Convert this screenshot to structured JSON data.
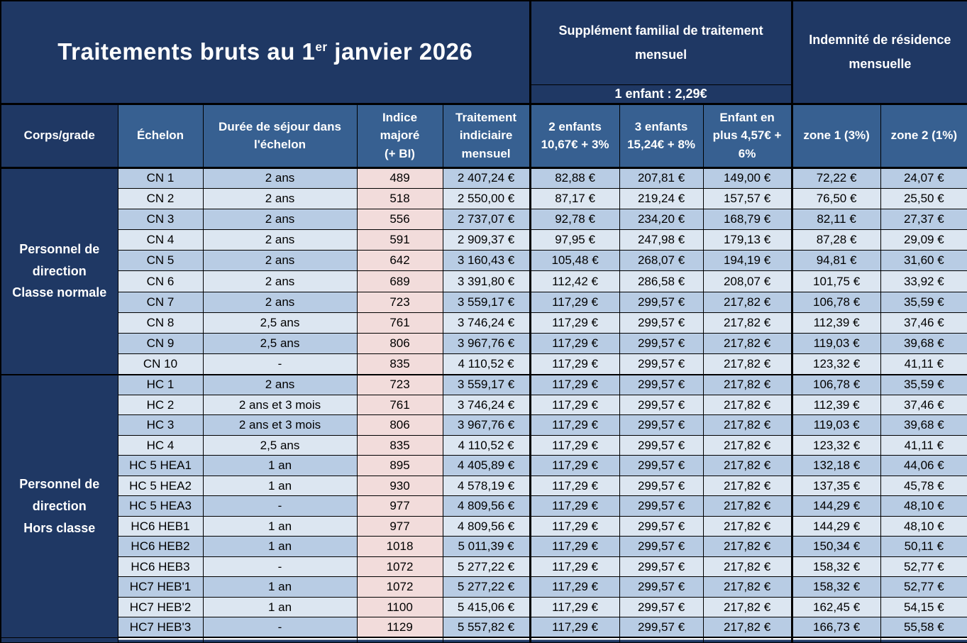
{
  "title": {
    "prefix": "Traitements bruts au 1",
    "superscript": "er",
    "suffix": " janvier 2026"
  },
  "top_headers": {
    "family_supplement": "Supplément familial de traitement\nmensuel",
    "one_child": "1 enfant : 2,29€",
    "residence": "Indemnité de résidence\nmensuelle"
  },
  "column_headers": [
    "Corps/grade",
    "Échelon",
    "Durée de séjour dans\nl'échelon",
    "Indice\nmajoré\n(+ BI)",
    "Traitement\nindiciaire\nmensuel",
    "2 enfants\n10,67€ + 3%",
    "3 enfants\n15,24€ + 8%",
    "Enfant en\nplus 4,57€ +\n6%",
    "zone 1 (3%)",
    "zone 2 (1%)"
  ],
  "groups": [
    {
      "label": "Personnel de\ndirection\nClasse normale",
      "rows": [
        [
          "CN 1",
          "2 ans",
          "489",
          "2 407,24 €",
          "82,88 €",
          "207,81 €",
          "149,00 €",
          "72,22 €",
          "24,07 €"
        ],
        [
          "CN 2",
          "2 ans",
          "518",
          "2 550,00 €",
          "87,17 €",
          "219,24 €",
          "157,57 €",
          "76,50 €",
          "25,50 €"
        ],
        [
          "CN 3",
          "2 ans",
          "556",
          "2 737,07 €",
          "92,78 €",
          "234,20 €",
          "168,79 €",
          "82,11 €",
          "27,37 €"
        ],
        [
          "CN 4",
          "2 ans",
          "591",
          "2 909,37 €",
          "97,95 €",
          "247,98 €",
          "179,13 €",
          "87,28 €",
          "29,09 €"
        ],
        [
          "CN 5",
          "2 ans",
          "642",
          "3 160,43 €",
          "105,48 €",
          "268,07 €",
          "194,19 €",
          "94,81 €",
          "31,60 €"
        ],
        [
          "CN 6",
          "2 ans",
          "689",
          "3 391,80 €",
          "112,42 €",
          "286,58 €",
          "208,07 €",
          "101,75 €",
          "33,92 €"
        ],
        [
          "CN 7",
          "2 ans",
          "723",
          "3 559,17 €",
          "117,29 €",
          "299,57 €",
          "217,82 €",
          "106,78 €",
          "35,59 €"
        ],
        [
          "CN 8",
          "2,5 ans",
          "761",
          "3 746,24 €",
          "117,29 €",
          "299,57 €",
          "217,82 €",
          "112,39 €",
          "37,46 €"
        ],
        [
          "CN 9",
          "2,5 ans",
          "806",
          "3 967,76 €",
          "117,29 €",
          "299,57 €",
          "217,82 €",
          "119,03 €",
          "39,68 €"
        ],
        [
          "CN 10",
          "-",
          "835",
          "4 110,52 €",
          "117,29 €",
          "299,57 €",
          "217,82 €",
          "123,32 €",
          "41,11 €"
        ]
      ]
    },
    {
      "label": "Personnel de\ndirection\nHors classe",
      "rows": [
        [
          "HC 1",
          "2 ans",
          "723",
          "3 559,17 €",
          "117,29 €",
          "299,57 €",
          "217,82 €",
          "106,78 €",
          "35,59 €"
        ],
        [
          "HC 2",
          "2 ans et 3 mois",
          "761",
          "3 746,24 €",
          "117,29 €",
          "299,57 €",
          "217,82 €",
          "112,39 €",
          "37,46 €"
        ],
        [
          "HC 3",
          "2 ans et 3 mois",
          "806",
          "3 967,76 €",
          "117,29 €",
          "299,57 €",
          "217,82 €",
          "119,03 €",
          "39,68 €"
        ],
        [
          "HC 4",
          "2,5 ans",
          "835",
          "4 110,52 €",
          "117,29 €",
          "299,57 €",
          "217,82 €",
          "123,32 €",
          "41,11 €"
        ],
        [
          "HC 5 HEA1",
          "1 an",
          "895",
          "4 405,89 €",
          "117,29 €",
          "299,57 €",
          "217,82 €",
          "132,18 €",
          "44,06 €"
        ],
        [
          "HC 5 HEA2",
          "1 an",
          "930",
          "4 578,19 €",
          "117,29 €",
          "299,57 €",
          "217,82 €",
          "137,35 €",
          "45,78 €"
        ],
        [
          "HC 5 HEA3",
          "-",
          "977",
          "4 809,56 €",
          "117,29 €",
          "299,57 €",
          "217,82 €",
          "144,29 €",
          "48,10 €"
        ],
        [
          "HC6 HEB1",
          "1 an",
          "977",
          "4 809,56 €",
          "117,29 €",
          "299,57 €",
          "217,82 €",
          "144,29 €",
          "48,10 €"
        ],
        [
          "HC6 HEB2",
          "1 an",
          "1018",
          "5 011,39 €",
          "117,29 €",
          "299,57 €",
          "217,82 €",
          "150,34 €",
          "50,11 €"
        ],
        [
          "HC6 HEB3",
          "-",
          "1072",
          "5 277,22 €",
          "117,29 €",
          "299,57 €",
          "217,82 €",
          "158,32 €",
          "52,77 €"
        ],
        [
          "HC7 HEB'1",
          "1 an",
          "1072",
          "5 277,22 €",
          "117,29 €",
          "299,57 €",
          "217,82 €",
          "158,32 €",
          "52,77 €"
        ],
        [
          "HC7 HEB'2",
          "1 an",
          "1100",
          "5 415,06 €",
          "117,29 €",
          "299,57 €",
          "217,82 €",
          "162,45 €",
          "54,15 €"
        ],
        [
          "HC7 HEB'3",
          "-",
          "1129",
          "5 557,82 €",
          "117,29 €",
          "299,57 €",
          "217,82 €",
          "166,73 €",
          "55,58 €"
        ]
      ]
    }
  ],
  "colors": {
    "navy": "#1F3864",
    "header_blue": "#376091",
    "row_dark": "#B8CCE4",
    "row_light": "#DCE6F1",
    "indice_pink": "#F2DCDB",
    "border": "#000000"
  }
}
